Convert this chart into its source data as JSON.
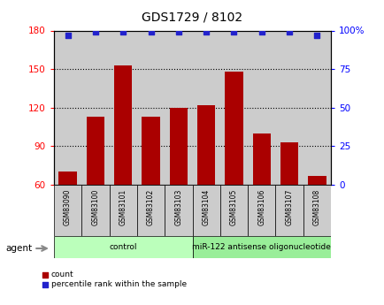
{
  "title": "GDS1729 / 8102",
  "samples": [
    "GSM83090",
    "GSM83100",
    "GSM83101",
    "GSM83102",
    "GSM83103",
    "GSM83104",
    "GSM83105",
    "GSM83106",
    "GSM83107",
    "GSM83108"
  ],
  "counts": [
    70,
    113,
    153,
    113,
    120,
    122,
    148,
    100,
    93,
    67
  ],
  "percentile_ranks": [
    97,
    99,
    99,
    99,
    99,
    99,
    99,
    99,
    99,
    97
  ],
  "ylim_left": [
    60,
    180
  ],
  "ylim_right": [
    0,
    100
  ],
  "yticks_left": [
    60,
    90,
    120,
    150,
    180
  ],
  "yticks_right": [
    0,
    25,
    50,
    75,
    100
  ],
  "yticklabels_right": [
    "0",
    "25",
    "50",
    "75",
    "100%"
  ],
  "bar_color": "#aa0000",
  "dot_color": "#2222cc",
  "groups": [
    {
      "label": "control",
      "start": 0,
      "end": 5,
      "color": "#bbffbb"
    },
    {
      "label": "miR-122 antisense oligonucleotide",
      "start": 5,
      "end": 10,
      "color": "#99ee99"
    }
  ],
  "legend_items": [
    {
      "label": "count",
      "color": "#aa0000"
    },
    {
      "label": "percentile rank within the sample",
      "color": "#2222cc"
    }
  ],
  "agent_label": "agent",
  "plot_bg_color": "#cccccc",
  "bar_width": 0.65
}
